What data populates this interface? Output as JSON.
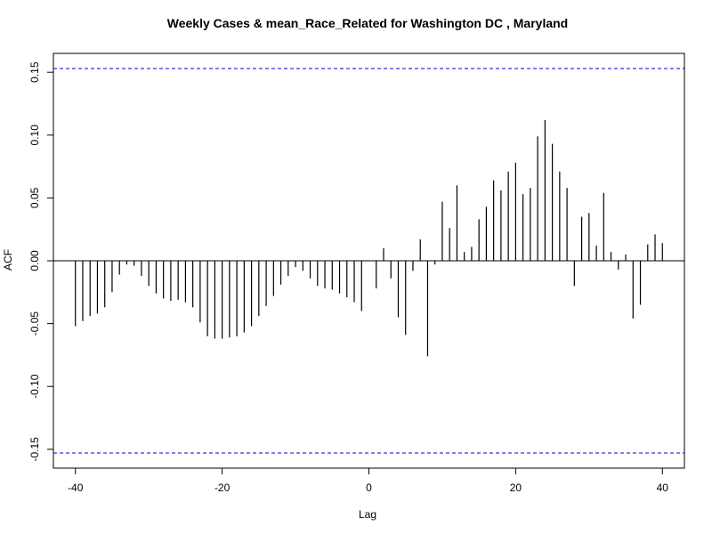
{
  "chart_data": {
    "type": "bar",
    "title": "Weekly Cases & mean_Race_Related for Washington DC , Maryland",
    "xlabel": "Lag",
    "ylabel": "ACF",
    "xlim": [
      -43,
      43
    ],
    "ylim": [
      -0.165,
      0.165
    ],
    "x_ticks": [
      -40,
      -20,
      0,
      20,
      40
    ],
    "x_tick_labels": [
      "-40",
      "-20",
      "0",
      "20",
      "40"
    ],
    "y_ticks": [
      -0.15,
      -0.1,
      -0.05,
      0.0,
      0.05,
      0.1,
      0.15
    ],
    "y_tick_labels": [
      "-0.15",
      "-0.10",
      "-0.05",
      "0.00",
      "0.05",
      "0.10",
      "0.15"
    ],
    "confidence_band": 0.153,
    "line_color": "#000000",
    "band_color": "#0000cc",
    "lags": [
      -40,
      -39,
      -38,
      -37,
      -36,
      -35,
      -34,
      -33,
      -32,
      -31,
      -30,
      -29,
      -28,
      -27,
      -26,
      -25,
      -24,
      -23,
      -22,
      -21,
      -20,
      -19,
      -18,
      -17,
      -16,
      -15,
      -14,
      -13,
      -12,
      -11,
      -10,
      -9,
      -8,
      -7,
      -6,
      -5,
      -4,
      -3,
      -2,
      -1,
      0,
      1,
      2,
      3,
      4,
      5,
      6,
      7,
      8,
      9,
      10,
      11,
      12,
      13,
      14,
      15,
      16,
      17,
      18,
      19,
      20,
      21,
      22,
      23,
      24,
      25,
      26,
      27,
      28,
      29,
      30,
      31,
      32,
      33,
      34,
      35,
      36,
      37,
      38,
      39,
      40
    ],
    "values": [
      -0.052,
      -0.048,
      -0.044,
      -0.042,
      -0.037,
      -0.025,
      -0.011,
      -0.003,
      -0.004,
      -0.012,
      -0.02,
      -0.026,
      -0.03,
      -0.032,
      -0.031,
      -0.033,
      -0.037,
      -0.049,
      -0.06,
      -0.062,
      -0.062,
      -0.061,
      -0.06,
      -0.057,
      -0.052,
      -0.044,
      -0.036,
      -0.028,
      -0.019,
      -0.012,
      -0.005,
      -0.008,
      -0.014,
      -0.02,
      -0.022,
      -0.023,
      -0.026,
      -0.029,
      -0.033,
      -0.04,
      0.0,
      -0.022,
      0.01,
      -0.014,
      -0.045,
      -0.059,
      -0.008,
      0.017,
      -0.076,
      -0.003,
      0.047,
      0.026,
      0.06,
      0.007,
      0.011,
      0.033,
      0.043,
      0.064,
      0.056,
      0.071,
      0.078,
      0.053,
      0.058,
      0.099,
      0.112,
      0.093,
      0.071,
      0.058,
      -0.02,
      0.035,
      0.038,
      0.012,
      0.054,
      0.007,
      -0.007,
      0.005,
      -0.046,
      -0.035,
      0.013,
      0.021,
      0.014
    ]
  }
}
